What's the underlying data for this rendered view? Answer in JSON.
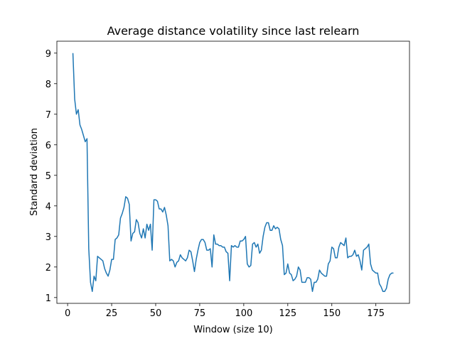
{
  "chart_data": {
    "type": "line",
    "title": "Average distance volatility since last relearn",
    "x_label": "Window (size 10)",
    "y_label": "Standard deviation",
    "x": [
      3,
      4,
      5,
      6,
      7,
      8,
      9,
      10,
      11,
      12,
      13,
      14,
      15,
      16,
      17,
      18,
      19,
      20,
      21,
      22,
      23,
      24,
      25,
      26,
      27,
      28,
      29,
      30,
      31,
      32,
      33,
      34,
      35,
      36,
      37,
      38,
      39,
      40,
      41,
      42,
      43,
      44,
      45,
      46,
      47,
      48,
      49,
      50,
      51,
      52,
      53,
      54,
      55,
      56,
      57,
      58,
      59,
      60,
      61,
      62,
      63,
      64,
      65,
      66,
      67,
      68,
      69,
      70,
      71,
      72,
      73,
      74,
      75,
      76,
      77,
      78,
      79,
      80,
      81,
      82,
      83,
      84,
      85,
      86,
      87,
      88,
      89,
      90,
      91,
      92,
      93,
      94,
      95,
      96,
      97,
      98,
      99,
      100,
      101,
      102,
      103,
      104,
      105,
      106,
      107,
      108,
      109,
      110,
      111,
      112,
      113,
      114,
      115,
      116,
      117,
      118,
      119,
      120,
      121,
      122,
      123,
      124,
      125,
      126,
      127,
      128,
      129,
      130,
      131,
      132,
      133,
      134,
      135,
      136,
      137,
      138,
      139,
      140,
      141,
      142,
      143,
      144,
      145,
      146,
      147,
      148,
      149,
      150,
      151,
      152,
      153,
      154,
      155,
      156,
      157,
      158,
      159,
      160,
      161,
      162,
      163,
      164,
      165,
      166,
      167,
      168,
      169,
      170,
      171,
      172,
      173,
      174,
      175,
      176,
      177,
      178,
      179,
      180,
      181,
      182,
      183,
      184,
      185
    ],
    "series": [
      {
        "color": "#1f77b4",
        "values": [
          9.0,
          7.5,
          7.0,
          7.15,
          6.65,
          6.5,
          6.3,
          6.1,
          6.2,
          2.6,
          1.5,
          1.2,
          1.7,
          1.55,
          2.35,
          2.3,
          2.25,
          2.2,
          1.95,
          1.8,
          1.7,
          1.9,
          2.25,
          2.25,
          2.9,
          2.95,
          3.05,
          3.6,
          3.75,
          3.95,
          4.3,
          4.25,
          4.05,
          2.85,
          3.1,
          3.15,
          3.55,
          3.45,
          3.1,
          2.95,
          3.25,
          2.95,
          3.4,
          3.2,
          3.4,
          2.55,
          4.2,
          4.2,
          4.15,
          3.9,
          3.9,
          3.8,
          3.95,
          3.7,
          3.35,
          2.2,
          2.25,
          2.2,
          2.0,
          2.15,
          2.2,
          2.4,
          2.3,
          2.25,
          2.2,
          2.3,
          2.55,
          2.5,
          2.2,
          1.85,
          2.25,
          2.55,
          2.8,
          2.9,
          2.9,
          2.8,
          2.55,
          2.55,
          2.6,
          2.0,
          3.05,
          2.75,
          2.75,
          2.7,
          2.7,
          2.65,
          2.65,
          2.5,
          2.45,
          1.55,
          2.7,
          2.65,
          2.7,
          2.65,
          2.65,
          2.85,
          2.85,
          2.9,
          3.0,
          2.1,
          2.0,
          2.05,
          2.75,
          2.8,
          2.65,
          2.75,
          2.45,
          2.55,
          3.0,
          3.3,
          3.45,
          3.45,
          3.2,
          3.2,
          3.35,
          3.25,
          3.3,
          3.25,
          2.9,
          2.7,
          1.75,
          1.8,
          2.1,
          1.8,
          1.75,
          1.55,
          1.6,
          1.7,
          2.0,
          1.9,
          1.5,
          1.5,
          1.5,
          1.65,
          1.65,
          1.6,
          1.2,
          1.5,
          1.5,
          1.6,
          1.9,
          1.8,
          1.75,
          1.7,
          1.7,
          2.1,
          2.2,
          2.65,
          2.6,
          2.3,
          2.3,
          2.65,
          2.8,
          2.75,
          2.7,
          2.95,
          2.3,
          2.35,
          2.35,
          2.4,
          2.55,
          2.35,
          2.4,
          2.2,
          1.9,
          2.55,
          2.6,
          2.65,
          2.75,
          2.1,
          1.9,
          1.85,
          1.8,
          1.8,
          1.45,
          1.35,
          1.2,
          1.2,
          1.3,
          1.6,
          1.75,
          1.8,
          1.8
        ]
      }
    ],
    "xlim": [
      -6.1,
      194.1
    ],
    "ylim": [
      0.81,
      9.39
    ],
    "xticks": [
      0,
      25,
      50,
      75,
      100,
      125,
      150,
      175
    ],
    "yticks": [
      1,
      2,
      3,
      4,
      5,
      6,
      7,
      8,
      9
    ],
    "grid": false
  }
}
